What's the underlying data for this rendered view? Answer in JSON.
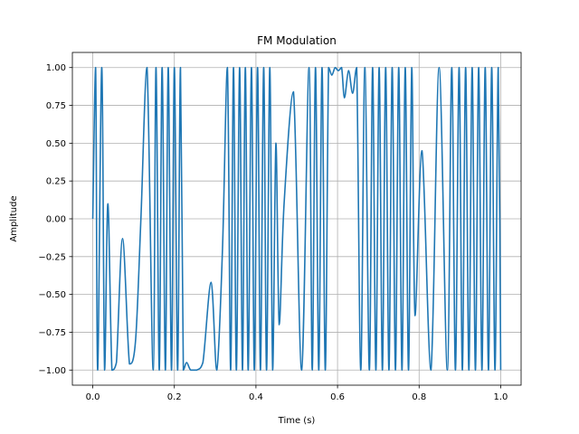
{
  "chart_data": {
    "type": "line",
    "title": "FM Modulation",
    "xlabel": "Time (s)",
    "ylabel": "Amplitude",
    "xlim": [
      -0.05,
      1.05
    ],
    "ylim": [
      -1.1,
      1.1
    ],
    "grid": true,
    "x_ticks": [
      0.0,
      0.2,
      0.4,
      0.6,
      0.8,
      1.0
    ],
    "x_tick_labels": [
      "0.0",
      "0.2",
      "0.4",
      "0.6",
      "0.8",
      "1.0"
    ],
    "y_ticks": [
      -1.0,
      -0.75,
      -0.5,
      -0.25,
      0.0,
      0.25,
      0.5,
      0.75,
      1.0
    ],
    "y_tick_labels": [
      "−1.00",
      "−0.75",
      "−0.50",
      "−0.25",
      "0.00",
      "0.25",
      "0.50",
      "0.75",
      "1.00"
    ],
    "series": [
      {
        "color": "#1f77b4",
        "x": [
          0.0,
          0.007,
          0.012,
          0.022,
          0.029,
          0.037,
          0.047,
          0.058,
          0.073,
          0.09,
          0.105,
          0.118,
          0.133,
          0.148,
          0.155,
          0.163,
          0.17,
          0.178,
          0.185,
          0.193,
          0.2,
          0.208,
          0.215,
          0.222,
          0.23,
          0.24,
          0.255,
          0.27,
          0.29,
          0.304,
          0.318,
          0.33,
          0.338,
          0.345,
          0.352,
          0.36,
          0.367,
          0.374,
          0.381,
          0.389,
          0.396,
          0.404,
          0.411,
          0.419,
          0.426,
          0.434,
          0.441,
          0.449,
          0.457,
          0.469,
          0.492,
          0.512,
          0.53,
          0.538,
          0.546,
          0.554,
          0.562,
          0.57,
          0.578,
          0.586,
          0.594,
          0.602,
          0.61,
          0.617,
          0.627,
          0.637,
          0.647,
          0.657,
          0.667,
          0.678,
          0.686,
          0.694,
          0.702,
          0.71,
          0.718,
          0.726,
          0.734,
          0.742,
          0.75,
          0.758,
          0.766,
          0.774,
          0.782,
          0.79,
          0.807,
          0.829,
          0.849,
          0.869,
          0.88,
          0.889,
          0.898,
          0.906,
          0.914,
          0.922,
          0.93,
          0.938,
          0.946,
          0.954,
          0.962,
          0.97,
          0.978,
          0.986,
          0.994,
          1.0
        ],
        "y": [
          0.0,
          1.0,
          -1.0,
          1.0,
          -1.0,
          0.1,
          -1.0,
          -0.95,
          -0.13,
          -0.96,
          -0.8,
          0.0,
          1.0,
          -1.0,
          1.0,
          -1.0,
          1.0,
          -1.0,
          1.0,
          -1.0,
          1.0,
          -1.0,
          1.0,
          -1.0,
          -0.95,
          -1.0,
          -1.0,
          -0.95,
          -0.42,
          -1.0,
          -0.2,
          1.0,
          -1.0,
          1.0,
          -1.0,
          1.0,
          -1.0,
          1.0,
          -1.0,
          1.0,
          -1.0,
          1.0,
          -1.0,
          1.0,
          -1.0,
          1.0,
          -1.0,
          0.5,
          -0.7,
          0.1,
          0.84,
          -1.0,
          1.0,
          -1.0,
          1.0,
          -1.0,
          1.0,
          -1.0,
          1.0,
          0.95,
          1.0,
          0.98,
          1.0,
          0.8,
          0.98,
          0.83,
          1.0,
          -1.0,
          1.0,
          -1.0,
          1.0,
          -1.0,
          1.0,
          -1.0,
          1.0,
          -1.0,
          1.0,
          -1.0,
          1.0,
          -1.0,
          1.0,
          -1.0,
          1.0,
          -0.64,
          0.45,
          -1.0,
          1.0,
          -1.0,
          1.0,
          -1.0,
          1.0,
          -1.0,
          1.0,
          -1.0,
          1.0,
          -1.0,
          1.0,
          -1.0,
          1.0,
          -1.0,
          1.0,
          -1.0,
          1.0,
          -1.0
        ]
      }
    ]
  }
}
